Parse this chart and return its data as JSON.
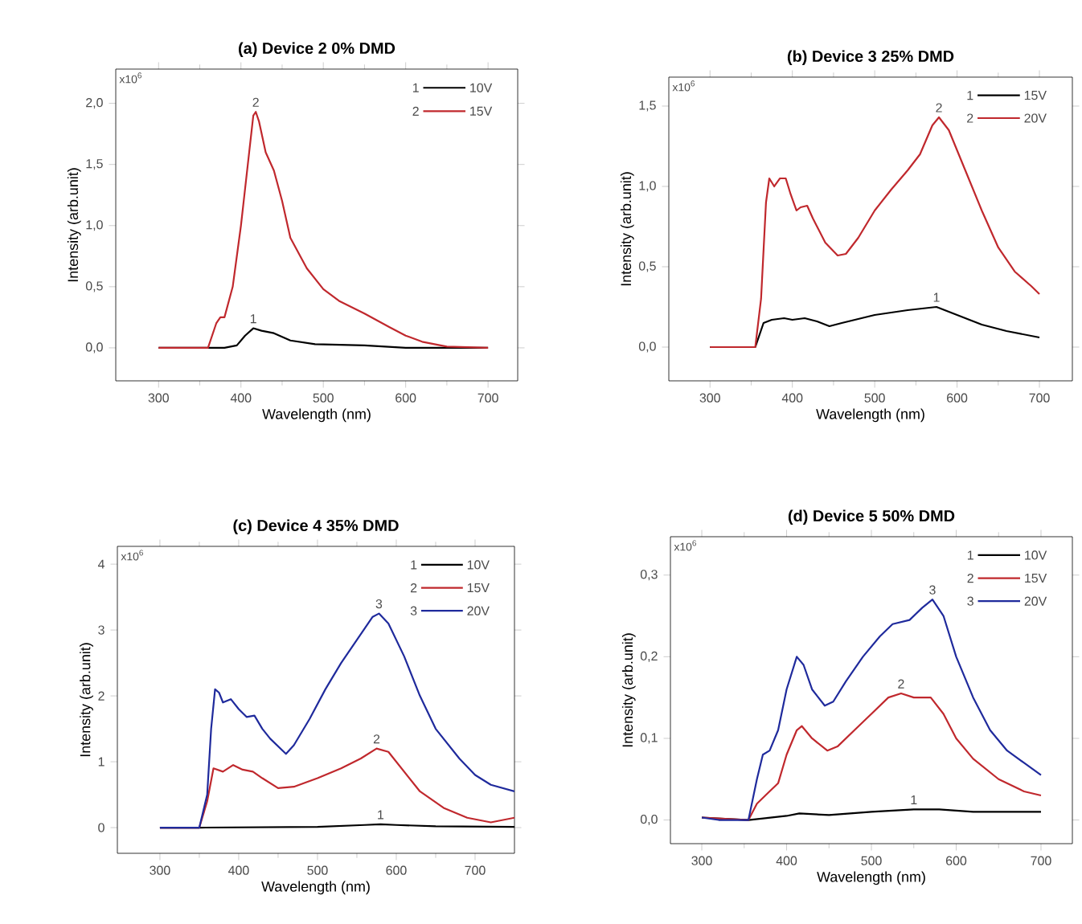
{
  "chart_data": [
    {
      "type": "line",
      "title": "(a) Device 2  0% DMD",
      "xlabel": "Wavelength (nm)",
      "ylabel": "Intensity (arb.unit)",
      "xlim": [
        248,
        736
      ],
      "ylim": [
        -0.27,
        2.28
      ],
      "xticks": [
        300,
        400,
        500,
        600,
        700
      ],
      "yticks": [
        {
          "value": 0,
          "label": "0,0"
        },
        {
          "value": 0.5,
          "label": "0,5"
        },
        {
          "value": 1,
          "label": "1,0"
        },
        {
          "value": 1.5,
          "label": "1,5"
        },
        {
          "value": 2,
          "label": "2,0"
        }
      ],
      "legend": "top right",
      "annotations": [
        "x10$^{6}$",
        "1",
        "2"
      ],
      "series": [
        {
          "name": "10V",
          "color": "#000000",
          "x": [
            300,
            380,
            395,
            405,
            415,
            425,
            440,
            460,
            490,
            550,
            600,
            700
          ],
          "values": [
            0,
            0,
            0.02,
            0.1,
            0.16,
            0.14,
            0.12,
            0.06,
            0.03,
            0.02,
            0,
            0
          ]
        },
        {
          "name": "15V",
          "color": "#c0282d",
          "x": [
            300,
            360,
            370,
            375,
            380,
            390,
            400,
            410,
            415,
            418,
            422,
            430,
            440,
            450,
            460,
            480,
            500,
            520,
            550,
            580,
            600,
            620,
            650,
            700
          ],
          "values": [
            0,
            0,
            0.2,
            0.25,
            0.25,
            0.5,
            1.0,
            1.6,
            1.9,
            1.93,
            1.85,
            1.6,
            1.45,
            1.2,
            0.9,
            0.65,
            0.48,
            0.38,
            0.28,
            0.17,
            0.1,
            0.05,
            0.01,
            0
          ]
        }
      ]
    },
    {
      "type": "line",
      "title": "(b) Device 3  25% DMD",
      "xlabel": "Wavelength (nm)",
      "ylabel": "Intensity (arb.unit)",
      "xlim": [
        250,
        740
      ],
      "ylim": [
        -0.21,
        1.68
      ],
      "xticks": [
        300,
        400,
        500,
        600,
        700
      ],
      "yticks": [
        {
          "value": 0,
          "label": "0,0"
        },
        {
          "value": 0.5,
          "label": "0,5"
        },
        {
          "value": 1,
          "label": "1,0"
        },
        {
          "value": 1.5,
          "label": "1,5"
        }
      ],
      "legend": "top right",
      "annotations": [
        "x10$^{6}$",
        "1",
        "2"
      ],
      "series": [
        {
          "name": "15V",
          "color": "#000000",
          "x": [
            300,
            355,
            365,
            375,
            390,
            400,
            415,
            430,
            445,
            460,
            500,
            540,
            575,
            600,
            630,
            660,
            700
          ],
          "values": [
            0,
            0,
            0.15,
            0.17,
            0.18,
            0.17,
            0.18,
            0.16,
            0.13,
            0.15,
            0.2,
            0.23,
            0.25,
            0.2,
            0.14,
            0.1,
            0.06
          ]
        },
        {
          "name": "20V",
          "color": "#c0282d",
          "x": [
            300,
            355,
            362,
            368,
            372,
            378,
            385,
            392,
            398,
            405,
            410,
            418,
            425,
            440,
            455,
            465,
            480,
            500,
            520,
            540,
            555,
            570,
            578,
            590,
            610,
            630,
            650,
            670,
            690,
            700
          ],
          "values": [
            0,
            0,
            0.3,
            0.9,
            1.05,
            1.0,
            1.05,
            1.05,
            0.95,
            0.85,
            0.87,
            0.88,
            0.8,
            0.65,
            0.57,
            0.58,
            0.68,
            0.85,
            0.98,
            1.1,
            1.2,
            1.38,
            1.43,
            1.35,
            1.1,
            0.85,
            0.62,
            0.47,
            0.38,
            0.33
          ]
        }
      ]
    },
    {
      "type": "line",
      "title": "(c) Device 4  35% DMD",
      "xlabel": "Wavelength (nm)",
      "ylabel": "Intensity (arb.unit)",
      "xlim": [
        246,
        750
      ],
      "ylim": [
        -0.39,
        4.27
      ],
      "xticks": [
        300,
        400,
        500,
        600,
        700
      ],
      "yticks": [
        0,
        1,
        2,
        3,
        4
      ],
      "legend": "top right",
      "annotations": [
        "x10$^{6}$",
        "1",
        "2",
        "3"
      ],
      "series": [
        {
          "name": "10V",
          "color": "#000000",
          "x": [
            300,
            350,
            500,
            560,
            580,
            600,
            650,
            750
          ],
          "values": [
            0,
            0,
            0.01,
            0.04,
            0.05,
            0.04,
            0.02,
            0.01
          ]
        },
        {
          "name": "15V",
          "color": "#c0282d",
          "x": [
            300,
            350,
            360,
            368,
            380,
            393,
            405,
            418,
            430,
            450,
            470,
            500,
            530,
            555,
            575,
            590,
            610,
            630,
            660,
            690,
            720,
            750
          ],
          "values": [
            0,
            0,
            0.4,
            0.9,
            0.85,
            0.95,
            0.88,
            0.85,
            0.75,
            0.6,
            0.62,
            0.75,
            0.9,
            1.05,
            1.2,
            1.15,
            0.85,
            0.55,
            0.3,
            0.15,
            0.08,
            0.15
          ]
        },
        {
          "name": "20V",
          "color": "#1f2a9c",
          "x": [
            300,
            350,
            360,
            365,
            370,
            375,
            380,
            390,
            400,
            410,
            420,
            430,
            440,
            460,
            470,
            490,
            510,
            530,
            550,
            570,
            578,
            590,
            610,
            630,
            650,
            680,
            700,
            720,
            750
          ],
          "values": [
            0,
            0,
            0.5,
            1.5,
            2.1,
            2.05,
            1.9,
            1.95,
            1.8,
            1.68,
            1.7,
            1.5,
            1.35,
            1.12,
            1.25,
            1.65,
            2.1,
            2.5,
            2.85,
            3.2,
            3.25,
            3.1,
            2.6,
            2.0,
            1.5,
            1.05,
            0.8,
            0.65,
            0.55
          ]
        }
      ]
    },
    {
      "type": "line",
      "title": "(d) Device 5  50% DMD",
      "xlabel": "Wavelength (nm)",
      "ylabel": "Intensity (arb.unit)",
      "xlim": [
        263,
        737
      ],
      "ylim": [
        -0.029,
        0.347
      ],
      "xticks": [
        300,
        400,
        500,
        600,
        700
      ],
      "yticks": [
        {
          "value": 0,
          "label": "0,0"
        },
        {
          "value": 0.1,
          "label": "0,1"
        },
        {
          "value": 0.2,
          "label": "0,2"
        },
        {
          "value": 0.3,
          "label": "0,3"
        }
      ],
      "legend": "top right",
      "annotations": [
        "x10$^{6}$",
        "1",
        "2",
        "3"
      ],
      "series": [
        {
          "name": "10V",
          "color": "#000000",
          "x": [
            300,
            355,
            400,
            415,
            450,
            500,
            550,
            580,
            620,
            700
          ],
          "values": [
            0.003,
            0,
            0.005,
            0.008,
            0.006,
            0.01,
            0.013,
            0.013,
            0.01,
            0.01
          ]
        },
        {
          "name": "15V",
          "color": "#c0282d",
          "x": [
            300,
            355,
            365,
            375,
            390,
            400,
            412,
            418,
            430,
            448,
            460,
            480,
            500,
            520,
            535,
            550,
            570,
            585,
            600,
            620,
            650,
            680,
            700
          ],
          "values": [
            0.003,
            0,
            0.02,
            0.03,
            0.045,
            0.08,
            0.11,
            0.115,
            0.1,
            0.085,
            0.09,
            0.11,
            0.13,
            0.15,
            0.155,
            0.15,
            0.15,
            0.13,
            0.1,
            0.075,
            0.05,
            0.035,
            0.03
          ]
        },
        {
          "name": "20V",
          "color": "#1f2a9c",
          "x": [
            300,
            320,
            355,
            365,
            372,
            380,
            390,
            400,
            412,
            420,
            430,
            445,
            455,
            470,
            490,
            510,
            525,
            545,
            560,
            572,
            585,
            600,
            620,
            640,
            660,
            680,
            700
          ],
          "values": [
            0.003,
            0,
            0,
            0.05,
            0.08,
            0.085,
            0.11,
            0.16,
            0.2,
            0.19,
            0.16,
            0.14,
            0.145,
            0.17,
            0.2,
            0.225,
            0.24,
            0.245,
            0.26,
            0.27,
            0.25,
            0.2,
            0.15,
            0.11,
            0.085,
            0.07,
            0.055
          ]
        }
      ]
    }
  ]
}
